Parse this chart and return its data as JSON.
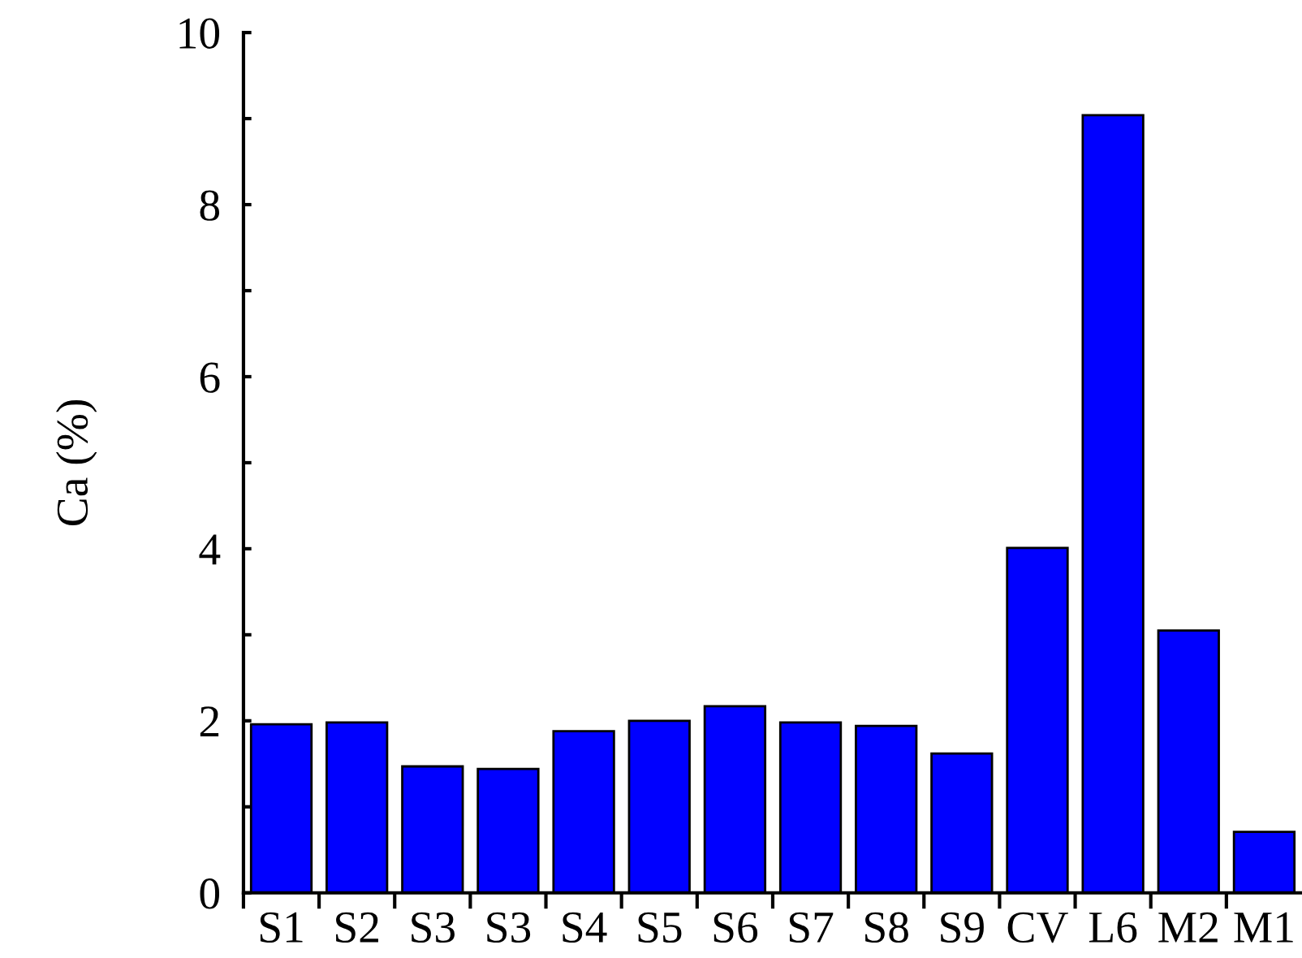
{
  "chart_data": {
    "type": "bar",
    "ylabel": "Ca (%)",
    "categories": [
      "S1",
      "S2",
      "S3",
      "S3",
      "S4",
      "S5",
      "S6",
      "S7",
      "S8",
      "S9",
      "CV",
      "L6",
      "M2",
      "M1"
    ],
    "values": [
      1.96,
      1.98,
      1.47,
      1.44,
      1.88,
      2.0,
      2.17,
      1.98,
      1.94,
      1.62,
      4.01,
      9.04,
      3.05,
      0.71
    ],
    "color": "#0000ff",
    "ylim": [
      0,
      10
    ],
    "yticks": [
      0,
      {
        "value": 1,
        "label": null
      },
      2,
      {
        "value": 3,
        "label": null
      },
      4,
      {
        "value": 5,
        "label": null
      },
      6,
      {
        "value": 7,
        "label": null
      },
      8,
      {
        "value": 9,
        "label": null
      },
      10
    ],
    "grid": false
  }
}
